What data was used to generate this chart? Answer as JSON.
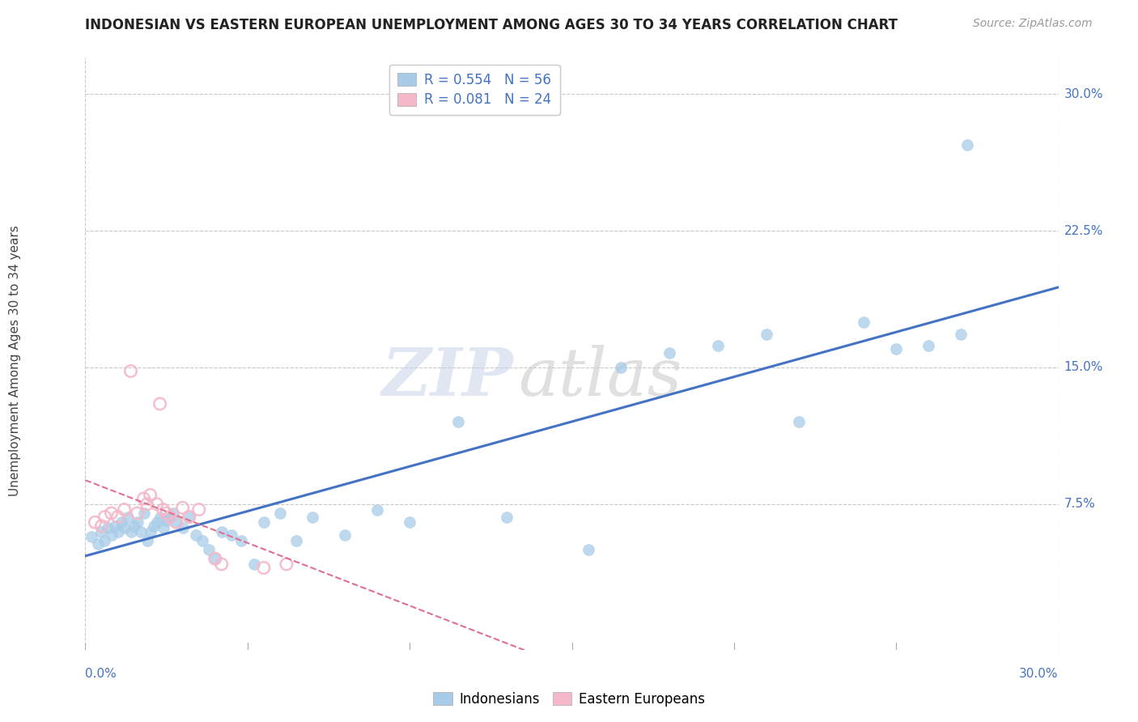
{
  "title": "INDONESIAN VS EASTERN EUROPEAN UNEMPLOYMENT AMONG AGES 30 TO 34 YEARS CORRELATION CHART",
  "source_text": "Source: ZipAtlas.com",
  "ylabel": "Unemployment Among Ages 30 to 34 years",
  "xlim": [
    0.0,
    0.3
  ],
  "ylim": [
    -0.005,
    0.32
  ],
  "background_color": "#ffffff",
  "grid_color": "#c8c8c8",
  "watermark_zip": "ZIP",
  "watermark_atlas": "atlas",
  "legend_R1": "R = 0.554",
  "legend_N1": "N = 56",
  "legend_R2": "R = 0.081",
  "legend_N2": "N = 24",
  "indonesian_color": "#a8cce8",
  "eastern_color": "#f4b8c8",
  "line_color_indonesian": "#4472c4",
  "line_color_eastern": "#e07090",
  "tick_label_color": "#4472c4",
  "indonesian_x": [
    0.002,
    0.004,
    0.005,
    0.006,
    0.007,
    0.008,
    0.009,
    0.01,
    0.011,
    0.012,
    0.013,
    0.014,
    0.015,
    0.016,
    0.017,
    0.018,
    0.019,
    0.02,
    0.021,
    0.022,
    0.023,
    0.024,
    0.025,
    0.026,
    0.027,
    0.028,
    0.03,
    0.032,
    0.034,
    0.036,
    0.038,
    0.04,
    0.042,
    0.045,
    0.048,
    0.052,
    0.055,
    0.06,
    0.065,
    0.07,
    0.08,
    0.09,
    0.1,
    0.115,
    0.13,
    0.155,
    0.165,
    0.18,
    0.195,
    0.21,
    0.22,
    0.24,
    0.25,
    0.26,
    0.27,
    0.272
  ],
  "indonesian_y": [
    0.057,
    0.053,
    0.06,
    0.055,
    0.062,
    0.058,
    0.063,
    0.06,
    0.065,
    0.062,
    0.068,
    0.06,
    0.063,
    0.065,
    0.06,
    0.07,
    0.055,
    0.06,
    0.063,
    0.065,
    0.068,
    0.062,
    0.066,
    0.068,
    0.07,
    0.065,
    0.062,
    0.068,
    0.058,
    0.055,
    0.05,
    0.045,
    0.06,
    0.058,
    0.055,
    0.042,
    0.065,
    0.07,
    0.055,
    0.068,
    0.058,
    0.072,
    0.065,
    0.12,
    0.068,
    0.05,
    0.15,
    0.158,
    0.162,
    0.168,
    0.12,
    0.175,
    0.16,
    0.162,
    0.168,
    0.272
  ],
  "eastern_x": [
    0.003,
    0.005,
    0.006,
    0.008,
    0.01,
    0.012,
    0.014,
    0.016,
    0.018,
    0.019,
    0.02,
    0.022,
    0.023,
    0.024,
    0.025,
    0.026,
    0.028,
    0.03,
    0.032,
    0.035,
    0.04,
    0.042,
    0.055,
    0.062
  ],
  "eastern_y": [
    0.065,
    0.063,
    0.068,
    0.07,
    0.068,
    0.072,
    0.148,
    0.07,
    0.078,
    0.075,
    0.08,
    0.075,
    0.13,
    0.072,
    0.07,
    0.068,
    0.065,
    0.073,
    0.068,
    0.072,
    0.045,
    0.042,
    0.04,
    0.042
  ]
}
